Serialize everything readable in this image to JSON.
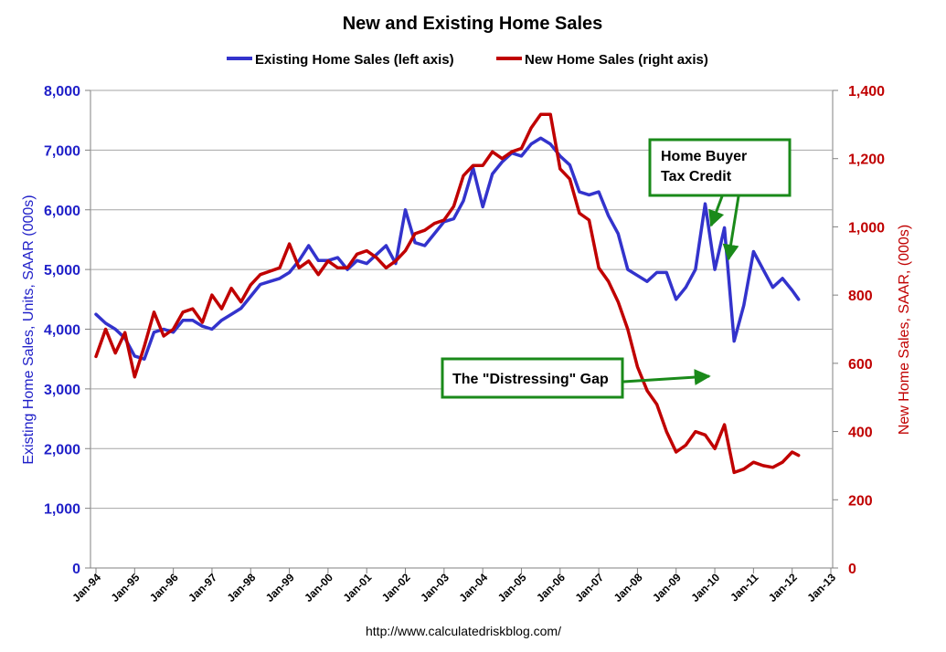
{
  "chart_data": {
    "type": "line",
    "title": "New and Existing Home Sales",
    "source": "http://www.calculatedriskblog.com/",
    "legend_placement": "top-center",
    "grid": true,
    "left_axis": {
      "label": "Existing Home Sales, Units, SAAR (000s)",
      "range": [
        0,
        8000
      ],
      "ticks": [
        "0",
        "1,000",
        "2,000",
        "3,000",
        "4,000",
        "5,000",
        "6,000",
        "7,000",
        "8,000"
      ],
      "color": "#1f1fc8"
    },
    "right_axis": {
      "label": "New Home Sales, SAAR, (000s)",
      "range": [
        0,
        1400
      ],
      "ticks": [
        "0",
        "200",
        "400",
        "600",
        "800",
        "1,000",
        "1,200",
        "1,400"
      ],
      "color": "#c00000"
    },
    "x_axis": {
      "range": [
        "Jan-94",
        "Jan-13"
      ],
      "tick_labels": [
        "Jan-94",
        "Jan-95",
        "Jan-96",
        "Jan-97",
        "Jan-98",
        "Jan-99",
        "Jan-00",
        "Jan-01",
        "Jan-02",
        "Jan-03",
        "Jan-04",
        "Jan-05",
        "Jan-06",
        "Jan-07",
        "Jan-08",
        "Jan-09",
        "Jan-10",
        "Jan-11",
        "Jan-12",
        "Jan-13"
      ]
    },
    "series": [
      {
        "name": "Existing Home Sales (left axis)",
        "axis": "left",
        "color": "#3333cc",
        "points": [
          [
            "1994-01",
            4250
          ],
          [
            "1994-04",
            4100
          ],
          [
            "1994-07",
            4000
          ],
          [
            "1994-10",
            3850
          ],
          [
            "1995-01",
            3550
          ],
          [
            "1995-04",
            3500
          ],
          [
            "1995-07",
            3950
          ],
          [
            "1995-10",
            4000
          ],
          [
            "1996-01",
            3950
          ],
          [
            "1996-04",
            4150
          ],
          [
            "1996-07",
            4150
          ],
          [
            "1996-10",
            4050
          ],
          [
            "1997-01",
            4000
          ],
          [
            "1997-04",
            4150
          ],
          [
            "1997-07",
            4250
          ],
          [
            "1997-10",
            4350
          ],
          [
            "1998-01",
            4550
          ],
          [
            "1998-04",
            4750
          ],
          [
            "1998-07",
            4800
          ],
          [
            "1998-10",
            4850
          ],
          [
            "1999-01",
            4950
          ],
          [
            "1999-04",
            5150
          ],
          [
            "1999-07",
            5400
          ],
          [
            "1999-10",
            5150
          ],
          [
            "2000-01",
            5150
          ],
          [
            "2000-04",
            5200
          ],
          [
            "2000-07",
            5000
          ],
          [
            "2000-10",
            5150
          ],
          [
            "2001-01",
            5100
          ],
          [
            "2001-04",
            5250
          ],
          [
            "2001-07",
            5400
          ],
          [
            "2001-10",
            5100
          ],
          [
            "2002-01",
            6000
          ],
          [
            "2002-04",
            5450
          ],
          [
            "2002-07",
            5400
          ],
          [
            "2002-10",
            5600
          ],
          [
            "2003-01",
            5800
          ],
          [
            "2003-04",
            5850
          ],
          [
            "2003-07",
            6150
          ],
          [
            "2003-10",
            6700
          ],
          [
            "2004-01",
            6050
          ],
          [
            "2004-04",
            6600
          ],
          [
            "2004-07",
            6800
          ],
          [
            "2004-10",
            6950
          ],
          [
            "2005-01",
            6900
          ],
          [
            "2005-04",
            7100
          ],
          [
            "2005-07",
            7200
          ],
          [
            "2005-10",
            7100
          ],
          [
            "2006-01",
            6900
          ],
          [
            "2006-04",
            6750
          ],
          [
            "2006-07",
            6300
          ],
          [
            "2006-10",
            6250
          ],
          [
            "2007-01",
            6300
          ],
          [
            "2007-04",
            5900
          ],
          [
            "2007-07",
            5600
          ],
          [
            "2007-10",
            5000
          ],
          [
            "2008-01",
            4900
          ],
          [
            "2008-04",
            4800
          ],
          [
            "2008-07",
            4950
          ],
          [
            "2008-10",
            4950
          ],
          [
            "2009-01",
            4500
          ],
          [
            "2009-04",
            4700
          ],
          [
            "2009-07",
            5000
          ],
          [
            "2009-10",
            6100
          ],
          [
            "2010-01",
            5000
          ],
          [
            "2010-04",
            5700
          ],
          [
            "2010-07",
            3800
          ],
          [
            "2010-10",
            4400
          ],
          [
            "2011-01",
            5300
          ],
          [
            "2011-04",
            5000
          ],
          [
            "2011-07",
            4700
          ],
          [
            "2011-10",
            4850
          ],
          [
            "2012-01",
            4650
          ],
          [
            "2012-03",
            4500
          ]
        ]
      },
      {
        "name": "New Home Sales (right axis)",
        "axis": "right",
        "color": "#c00000",
        "points": [
          [
            "1994-01",
            620
          ],
          [
            "1994-04",
            700
          ],
          [
            "1994-07",
            630
          ],
          [
            "1994-10",
            690
          ],
          [
            "1995-01",
            560
          ],
          [
            "1995-04",
            650
          ],
          [
            "1995-07",
            750
          ],
          [
            "1995-10",
            680
          ],
          [
            "1996-01",
            700
          ],
          [
            "1996-04",
            750
          ],
          [
            "1996-07",
            760
          ],
          [
            "1996-10",
            720
          ],
          [
            "1997-01",
            800
          ],
          [
            "1997-04",
            760
          ],
          [
            "1997-07",
            820
          ],
          [
            "1997-10",
            780
          ],
          [
            "1998-01",
            830
          ],
          [
            "1998-04",
            860
          ],
          [
            "1998-07",
            870
          ],
          [
            "1998-10",
            880
          ],
          [
            "1999-01",
            950
          ],
          [
            "1999-04",
            880
          ],
          [
            "1999-07",
            900
          ],
          [
            "1999-10",
            860
          ],
          [
            "2000-01",
            900
          ],
          [
            "2000-04",
            880
          ],
          [
            "2000-07",
            880
          ],
          [
            "2000-10",
            920
          ],
          [
            "2001-01",
            930
          ],
          [
            "2001-04",
            910
          ],
          [
            "2001-07",
            880
          ],
          [
            "2001-10",
            900
          ],
          [
            "2002-01",
            930
          ],
          [
            "2002-04",
            980
          ],
          [
            "2002-07",
            990
          ],
          [
            "2002-10",
            1010
          ],
          [
            "2003-01",
            1020
          ],
          [
            "2003-04",
            1060
          ],
          [
            "2003-07",
            1150
          ],
          [
            "2003-10",
            1180
          ],
          [
            "2004-01",
            1180
          ],
          [
            "2004-04",
            1220
          ],
          [
            "2004-07",
            1200
          ],
          [
            "2004-10",
            1220
          ],
          [
            "2005-01",
            1230
          ],
          [
            "2005-04",
            1290
          ],
          [
            "2005-07",
            1330
          ],
          [
            "2005-10",
            1330
          ],
          [
            "2006-01",
            1170
          ],
          [
            "2006-04",
            1140
          ],
          [
            "2006-07",
            1040
          ],
          [
            "2006-10",
            1020
          ],
          [
            "2007-01",
            880
          ],
          [
            "2007-04",
            840
          ],
          [
            "2007-07",
            780
          ],
          [
            "2007-10",
            700
          ],
          [
            "2008-01",
            590
          ],
          [
            "2008-04",
            520
          ],
          [
            "2008-07",
            480
          ],
          [
            "2008-10",
            400
          ],
          [
            "2009-01",
            340
          ],
          [
            "2009-04",
            360
          ],
          [
            "2009-07",
            400
          ],
          [
            "2009-10",
            390
          ],
          [
            "2010-01",
            350
          ],
          [
            "2010-04",
            420
          ],
          [
            "2010-07",
            280
          ],
          [
            "2010-10",
            290
          ],
          [
            "2011-01",
            310
          ],
          [
            "2011-04",
            300
          ],
          [
            "2011-07",
            295
          ],
          [
            "2011-10",
            310
          ],
          [
            "2012-01",
            340
          ],
          [
            "2012-03",
            330
          ]
        ]
      }
    ],
    "annotations": [
      {
        "text": [
          "Home Buyer",
          "Tax Credit"
        ],
        "border_color": "#1a8a1a"
      },
      {
        "text": [
          "The \"Distressing\" Gap"
        ],
        "border_color": "#1a8a1a"
      }
    ]
  }
}
